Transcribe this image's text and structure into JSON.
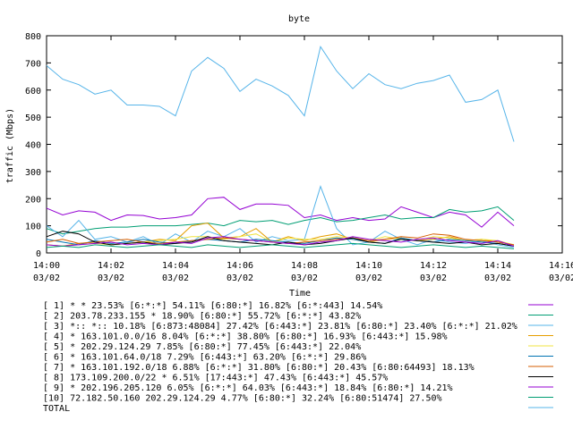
{
  "chart_data": {
    "type": "line",
    "title": "byte",
    "xlabel": "Time",
    "ylabel": "traffic (Mbps)",
    "ylim": [
      0,
      800
    ],
    "yticks": [
      0,
      100,
      200,
      300,
      400,
      500,
      600,
      700,
      800
    ],
    "xlim": [
      "14:00",
      "14:16"
    ],
    "xticks": [
      {
        "time": "14:00",
        "date": "03/02"
      },
      {
        "time": "14:02",
        "date": "03/02"
      },
      {
        "time": "14:04",
        "date": "03/02"
      },
      {
        "time": "14:06",
        "date": "03/02"
      },
      {
        "time": "14:08",
        "date": "03/02"
      },
      {
        "time": "14:10",
        "date": "03/02"
      },
      {
        "time": "14:12",
        "date": "03/02"
      },
      {
        "time": "14:14",
        "date": "03/02"
      },
      {
        "time": "14:16",
        "date": "03/02"
      }
    ],
    "grid": false,
    "legend_position": "bottom",
    "x": [
      "14:00",
      "14:00:30",
      "14:01",
      "14:01:30",
      "14:02",
      "14:02:30",
      "14:03",
      "14:03:30",
      "14:04",
      "14:04:30",
      "14:05",
      "14:05:30",
      "14:06",
      "14:06:30",
      "14:07",
      "14:07:30",
      "14:08",
      "14:08:30",
      "14:09",
      "14:09:30",
      "14:10",
      "14:10:30",
      "14:11",
      "14:11:30",
      "14:12",
      "14:12:30",
      "14:13",
      "14:13:30",
      "14:14",
      "14:14:30"
    ],
    "series": [
      {
        "name": "[ 1] * * 23.53%  [6:*:*] 54.11% [6:80:*] 16.82% [6:*:443] 14.54%",
        "color": "#9400d3",
        "values": [
          165,
          140,
          155,
          150,
          120,
          140,
          138,
          125,
          130,
          140,
          200,
          205,
          160,
          180,
          180,
          175,
          130,
          140,
          120,
          130,
          120,
          125,
          170,
          150,
          130,
          150,
          140,
          95,
          150,
          100
        ]
      },
      {
        "name": "[ 2] 203.78.233.155 * 18.90%  [6:80:*] 55.72% [6:*:*] 43.82%",
        "color": "#009e73",
        "values": [
          90,
          70,
          80,
          90,
          95,
          95,
          100,
          100,
          100,
          105,
          110,
          100,
          120,
          115,
          120,
          105,
          120,
          130,
          115,
          120,
          130,
          140,
          125,
          130,
          130,
          160,
          150,
          155,
          170,
          120
        ]
      },
      {
        "name": "[ 3] *:: *:: 10.18%  [6:873:48084] 27.42% [6:443:*] 23.81% [6:80:*] 23.40% [6:*:*] 21.02%",
        "color": "#56b4e9",
        "values": [
          100,
          60,
          120,
          50,
          60,
          40,
          60,
          30,
          70,
          40,
          80,
          60,
          90,
          40,
          60,
          45,
          50,
          245,
          90,
          30,
          40,
          80,
          50,
          30,
          50,
          40,
          35,
          45,
          30,
          20
        ]
      },
      {
        "name": "[ 4] * 163.101.0.0/16 8.04%  [6:*:*] 38.80% [6:80:*] 16.93% [6:443:*] 15.98%",
        "color": "#e69f00",
        "values": [
          30,
          25,
          35,
          40,
          30,
          35,
          40,
          50,
          45,
          100,
          110,
          55,
          60,
          90,
          40,
          60,
          45,
          60,
          70,
          50,
          40,
          50,
          55,
          45,
          50,
          60,
          45,
          50,
          40,
          30
        ]
      },
      {
        "name": "[ 5] * 202.29.124.29 7.85%  [6:80:*] 77.45% [6:443:*] 22.04%",
        "color": "#f0e442",
        "values": [
          30,
          25,
          30,
          35,
          30,
          35,
          40,
          45,
          50,
          60,
          60,
          50,
          60,
          70,
          40,
          55,
          50,
          50,
          60,
          55,
          45,
          60,
          50,
          45,
          60,
          55,
          45,
          50,
          45,
          30
        ]
      },
      {
        "name": "[ 6] * 163.101.64.0/18 7.29%  [6:443:*] 63.20% [6:*:*] 29.86%",
        "color": "#0072b2",
        "values": [
          50,
          40,
          30,
          45,
          35,
          40,
          50,
          40,
          35,
          45,
          50,
          45,
          40,
          50,
          45,
          40,
          35,
          45,
          55,
          50,
          40,
          35,
          55,
          45,
          40,
          50,
          45,
          40,
          35,
          25
        ]
      },
      {
        "name": "[ 7] * 163.101.192.0/18 6.88%  [6:*:*] 31.80% [6:80:*] 20.43% [6:80:64493] 18.13%",
        "color": "#d55e00",
        "values": [
          40,
          50,
          35,
          40,
          45,
          50,
          40,
          35,
          40,
          45,
          50,
          55,
          50,
          45,
          40,
          35,
          40,
          45,
          50,
          55,
          45,
          50,
          60,
          55,
          70,
          65,
          50,
          45,
          40,
          30
        ]
      },
      {
        "name": "[ 8] 173.109.200.0/22 * 6.51%  [17:443:*] 47.43% [6:443:*] 45.57%",
        "color": "#000000",
        "values": [
          60,
          80,
          70,
          40,
          30,
          35,
          40,
          30,
          35,
          40,
          60,
          45,
          40,
          35,
          30,
          40,
          30,
          35,
          45,
          55,
          40,
          35,
          50,
          45,
          40,
          35,
          40,
          30,
          35,
          25
        ]
      },
      {
        "name": "[ 9] * 202.196.205.120 6.05%  [6:*:*] 64.03% [6:443:*] 18.84% [6:80:*] 14.21%",
        "color": "#9400d3",
        "values": [
          30,
          25,
          30,
          35,
          40,
          30,
          35,
          30,
          40,
          35,
          55,
          60,
          50,
          45,
          40,
          35,
          30,
          40,
          45,
          60,
          50,
          45,
          40,
          50,
          55,
          45,
          40,
          35,
          45,
          25
        ]
      },
      {
        "name": "[10] 72.182.50.160 202.29.124.29 4.77%  [6:80:*] 32.24% [6:80:51474] 27.50%",
        "color": "#009e73",
        "values": [
          20,
          25,
          20,
          30,
          25,
          20,
          25,
          30,
          25,
          20,
          30,
          25,
          20,
          25,
          30,
          25,
          20,
          25,
          30,
          35,
          30,
          25,
          20,
          25,
          30,
          25,
          20,
          25,
          20,
          15
        ]
      },
      {
        "name": "TOTAL",
        "color": "#56b4e9",
        "values": [
          690,
          640,
          620,
          585,
          600,
          545,
          545,
          540,
          505,
          670,
          720,
          680,
          595,
          640,
          615,
          580,
          505,
          760,
          670,
          605,
          660,
          620,
          605,
          625,
          635,
          655,
          555,
          565,
          600,
          410
        ]
      }
    ]
  }
}
